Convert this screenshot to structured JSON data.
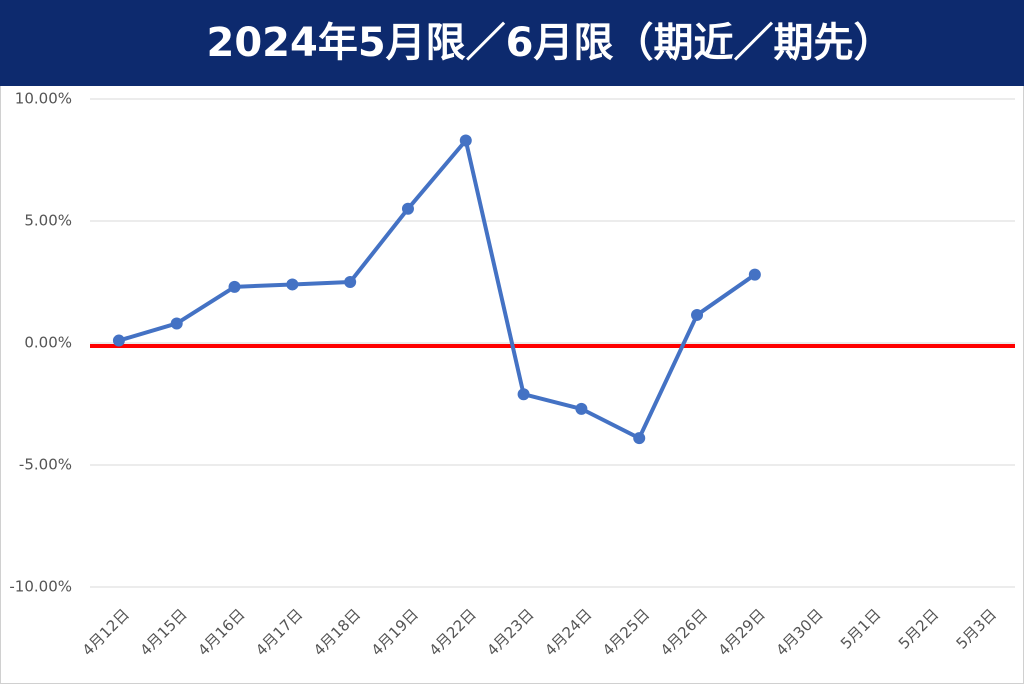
{
  "chart_data": {
    "type": "line",
    "title": "2024年5月限／6月限（期近／期先）",
    "categories": [
      "4月12日",
      "4月15日",
      "4月16日",
      "4月17日",
      "4月18日",
      "4月19日",
      "4月22日",
      "4月23日",
      "4月24日",
      "4月25日",
      "4月26日",
      "4月29日",
      "4月30日",
      "5月1日",
      "5月2日",
      "5月3日"
    ],
    "series": [
      {
        "color": "#4472c4",
        "values": [
          0.1,
          0.8,
          2.3,
          2.4,
          2.5,
          5.5,
          8.3,
          -2.1,
          -2.7,
          -3.9,
          1.15,
          2.8,
          null,
          null,
          null,
          null
        ]
      }
    ],
    "ylim": [
      -10,
      10
    ],
    "yticks": [
      {
        "value": -10,
        "label": "-10.00%"
      },
      {
        "value": -5,
        "label": "-5.00%"
      },
      {
        "value": 0,
        "label": "0.00%"
      },
      {
        "value": 5,
        "label": "5.00%"
      },
      {
        "value": 10,
        "label": "10.00%"
      }
    ],
    "reference_line": {
      "value": 0,
      "color": "#ff0000"
    },
    "grid": true
  }
}
